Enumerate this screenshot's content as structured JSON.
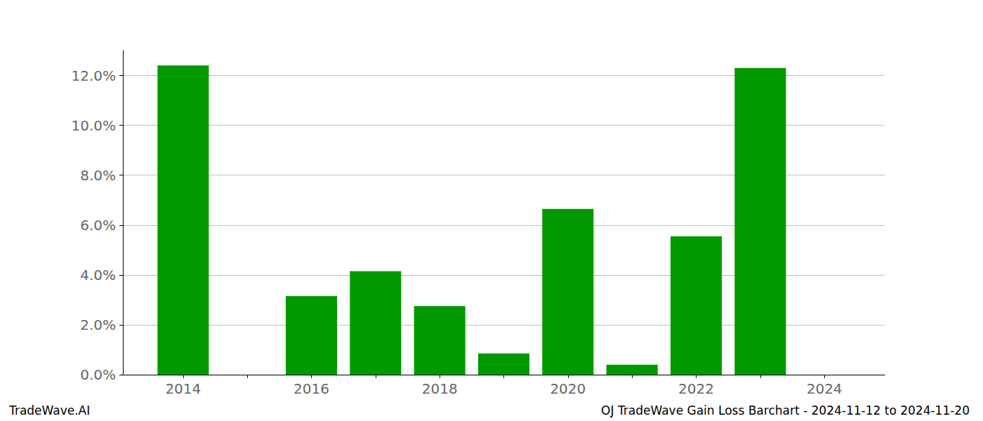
{
  "chart_data": {
    "type": "bar",
    "title": "OJ TradeWave Gain Loss Barchart - 2024-11-12 to 2024-11-20",
    "annotations": [
      "TradeWave.AI"
    ],
    "x": [
      2014,
      2015,
      2016,
      2017,
      2018,
      2019,
      2020,
      2021,
      2022,
      2023,
      2024
    ],
    "values": [
      12.4,
      0,
      3.15,
      4.15,
      2.75,
      0.85,
      6.65,
      0.4,
      5.55,
      12.3,
      0
    ],
    "color": "#009900",
    "xlim": [
      2013.06,
      2024.94
    ],
    "xticks": [
      2014,
      2016,
      2018,
      2020,
      2022,
      2024
    ],
    "ylim": [
      0,
      13
    ],
    "yticks": [
      {
        "value": 0,
        "label": "0.0%"
      },
      {
        "value": 2,
        "label": "2.0%"
      },
      {
        "value": 4,
        "label": "4.0%"
      },
      {
        "value": 6,
        "label": "6.0%"
      },
      {
        "value": 8,
        "label": "8.0%"
      },
      {
        "value": 10,
        "label": "10.0%"
      },
      {
        "value": 12,
        "label": "12.0%"
      }
    ],
    "grid": true
  }
}
